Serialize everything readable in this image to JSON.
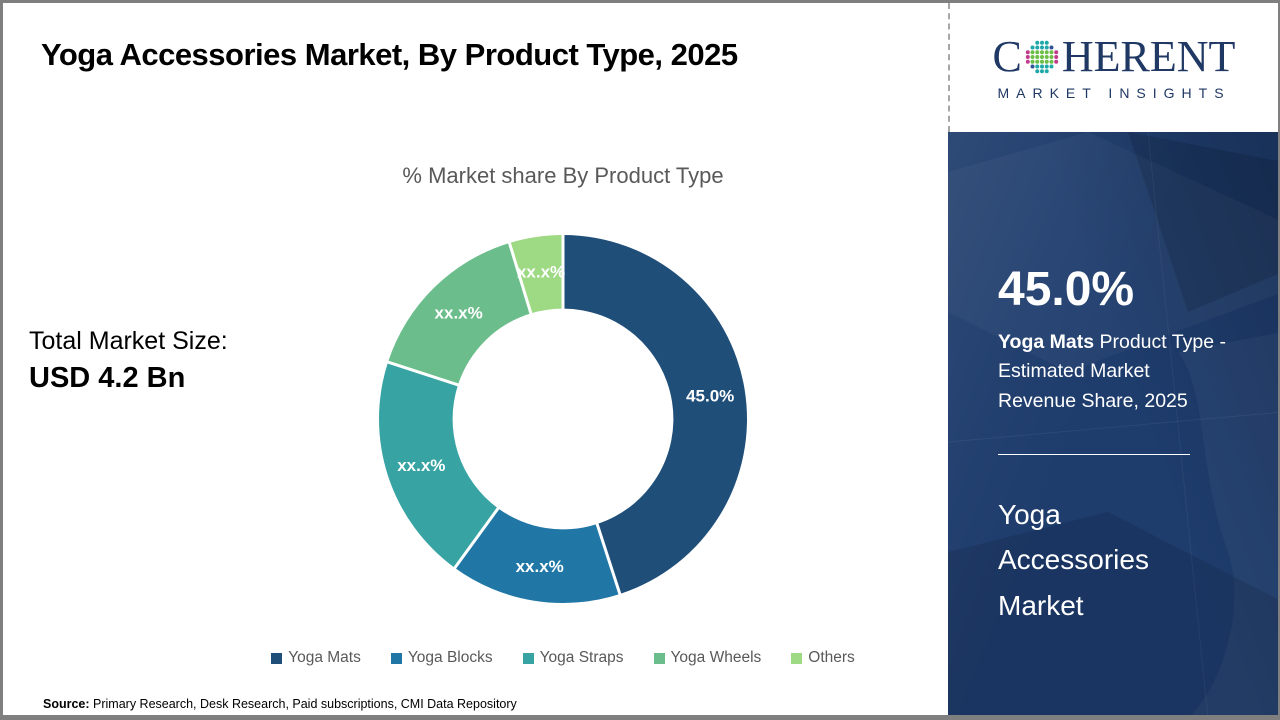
{
  "header": {
    "title": "Yoga Accessories Market, By Product Type, 2025"
  },
  "logo": {
    "part1": "C",
    "part2": "HERENT",
    "subtitle": "MARKET INSIGHTS",
    "icon": "dotted-globe-icon",
    "dot_colors": {
      "teal": "#1FA8A8",
      "green": "#6CBE45",
      "magenta": "#C23A8C",
      "navy": "#2F5496"
    },
    "brand_color": "#1F3864"
  },
  "chart_data": {
    "type": "donut",
    "title": "% Market share By Product Type",
    "categories": [
      "Yoga Mats",
      "Yoga Blocks",
      "Yoga Straps",
      "Yoga Wheels",
      "Others"
    ],
    "values": [
      45.0,
      15.0,
      20.0,
      15.3,
      4.7
    ],
    "labels": [
      "45.0%",
      "xx.x%",
      "xx.x%",
      "xx.x%",
      "xx.x%"
    ],
    "colors": [
      "#1F4E79",
      "#2077A6",
      "#38A3A3",
      "#6BBE8B",
      "#9ED983"
    ],
    "legend_position": "bottom",
    "start_angle_deg": 0,
    "inner_radius_ratio": 0.6
  },
  "total_market": {
    "label": "Total Market Size:",
    "value": "USD 4.2 Bn"
  },
  "sidebar": {
    "stat_value": "45.0%",
    "stat_desc_bold": "Yoga Mats",
    "stat_desc_rest": " Product Type - Estimated Market Revenue Share, 2025",
    "market_name": "Yoga Accessories Market"
  },
  "source": {
    "label": "Source:",
    "text": " Primary Research, Desk Research, Paid subscriptions, CMI Data Repository"
  }
}
